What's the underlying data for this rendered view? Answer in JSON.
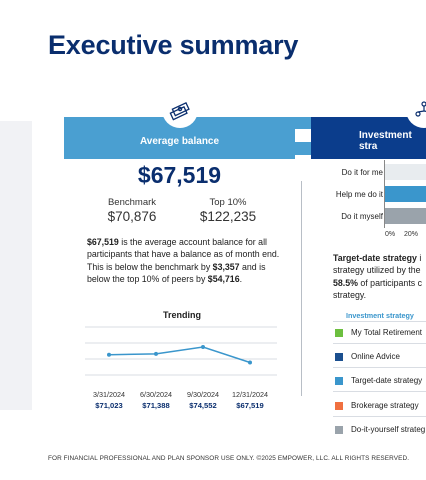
{
  "page": {
    "title": "Executive summary"
  },
  "avg_card": {
    "header": "Average balance",
    "icon": "money-stack-icon",
    "amount": "$67,519",
    "benchmark_label": "Benchmark",
    "benchmark_value": "$70,876",
    "top_label": "Top 10%",
    "top_value": "$122,235",
    "para": {
      "b1": "$67,519",
      "t1": " is the average account balance for all participants that have a balance as of month end. This is below the benchmark by ",
      "b2": "$3,357",
      "t2": " and is below the top 10% of peers by ",
      "b3": "$54,716",
      "t3": "."
    },
    "trending": {
      "title": "Trending",
      "points": [
        {
          "date": "3/31/2024",
          "value": "$71,023",
          "num": 71023
        },
        {
          "date": "6/30/2024",
          "value": "$71,388",
          "num": 71388
        },
        {
          "date": "9/30/2024",
          "value": "$74,552",
          "num": 74552
        },
        {
          "date": "12/31/2024",
          "value": "$67,519",
          "num": 67519
        }
      ]
    }
  },
  "inv_card": {
    "header": "Investment stra",
    "icon": "people-network-icon",
    "bars": [
      {
        "label": "Do it for me",
        "color": "#e8ecef"
      },
      {
        "label": "Help me do it",
        "color": "#3a96cc"
      },
      {
        "label": "Do it myself",
        "color": "#9aa3ab"
      }
    ],
    "axis_ticks": [
      "0%",
      "20%"
    ],
    "para": {
      "b1": "Target-date strategy",
      "t1": " i",
      "l2": "strategy utilized by the",
      "b3": "58.5%",
      "t3": " of participants c",
      "l4": "strategy."
    },
    "legend_title": "Investment strategy",
    "legend": [
      {
        "label": "My Total Retirement",
        "color": "#6cbf3f"
      },
      {
        "label": "Online Advice",
        "color": "#1b4f8f"
      },
      {
        "label": "Target-date strategy",
        "color": "#3a96cc"
      },
      {
        "label": "Brokerage strategy",
        "color": "#f07040"
      },
      {
        "label": "Do-it-yourself strateg",
        "color": "#9aa3ab"
      }
    ]
  },
  "footer": "FOR FINANCIAL PROFESSIONAL AND PLAN SPONSOR USE ONLY. ©2025 EMPOWER, LLC. ALL RIGHTS RESERVED.",
  "colors": {
    "title": "#0a2e6e",
    "header_light": "#4a9fd1",
    "header_dark": "#0b3d8c"
  }
}
